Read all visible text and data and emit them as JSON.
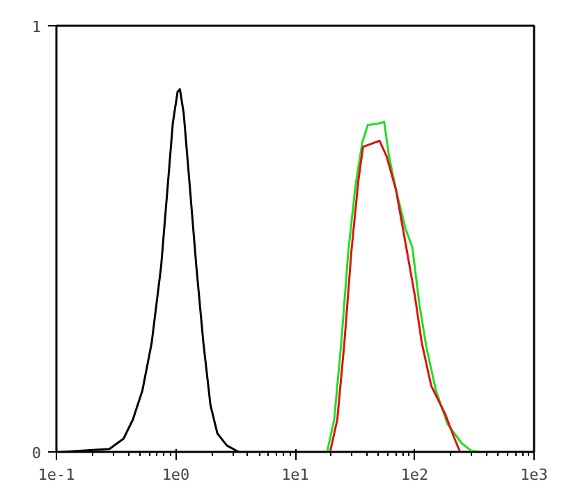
{
  "chart_data": {
    "type": "line",
    "log": "x",
    "grid": false,
    "xlim": [
      0.1,
      1000
    ],
    "ylim": [
      0,
      1
    ],
    "xticks": [
      {
        "value": 0.1,
        "label": "1e-1"
      },
      {
        "value": 1,
        "label": "1e0"
      },
      {
        "value": 10,
        "label": "1e1"
      },
      {
        "value": 100,
        "label": "1e2"
      },
      {
        "value": 1000,
        "label": "1e3"
      }
    ],
    "yticks": [
      0,
      1
    ],
    "series": [
      {
        "color": "#000000",
        "x": [
          0.112,
          0.278,
          0.365,
          0.437,
          0.525,
          0.628,
          0.753,
          0.863,
          0.944,
          1.035,
          1.082,
          1.164,
          1.297,
          1.486,
          1.702,
          1.95,
          2.23,
          2.68,
          3.36
        ],
        "values": [
          0,
          0.007,
          0.031,
          0.076,
          0.144,
          0.256,
          0.435,
          0.637,
          0.772,
          0.845,
          0.851,
          0.795,
          0.637,
          0.435,
          0.256,
          0.11,
          0.043,
          0.015,
          0
        ]
      },
      {
        "color": "#22dd22",
        "x": [
          18.5,
          21.2,
          24.3,
          27.8,
          32.0,
          36.5,
          40.5,
          48.5,
          55.6,
          61.0,
          69.8,
          83.6,
          95.7,
          109.6,
          125.6,
          150.7,
          188.8,
          248,
          297,
          372
        ],
        "values": [
          0,
          0.076,
          0.256,
          0.469,
          0.626,
          0.727,
          0.767,
          0.77,
          0.774,
          0.694,
          0.615,
          0.525,
          0.48,
          0.346,
          0.245,
          0.144,
          0.065,
          0.02,
          0.003,
          0
        ]
      },
      {
        "color": "#dd1111",
        "x": [
          19.6,
          22.5,
          25.8,
          29.5,
          33.8,
          37.0,
          42.4,
          50.8,
          58.2,
          69.8,
          83.6,
          100.2,
          114.8,
          137.7,
          180.7,
          216,
          240
        ],
        "values": [
          0,
          0.076,
          0.256,
          0.469,
          0.637,
          0.716,
          0.722,
          0.73,
          0.694,
          0.615,
          0.492,
          0.368,
          0.256,
          0.155,
          0.088,
          0.031,
          0
        ]
      }
    ]
  }
}
